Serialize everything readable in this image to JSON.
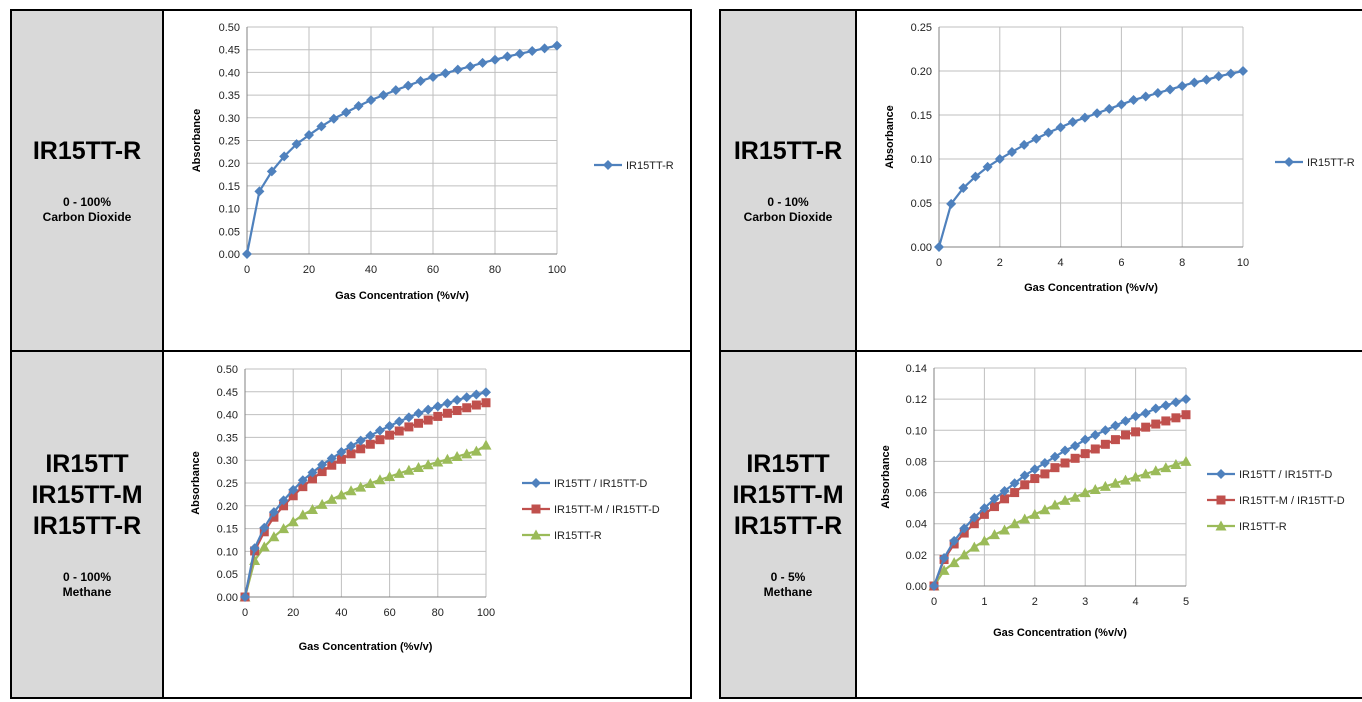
{
  "panels": [
    {
      "sensor_lines": [
        "IR15TT-R"
      ],
      "range": "0 - 100%",
      "gas": "Carbon Dioxide",
      "chart_data": {
        "type": "line",
        "xlabel": "Gas Concentration (%v/v)",
        "ylabel": "Absorbance",
        "xlim": [
          0,
          100
        ],
        "ylim": [
          0,
          0.5
        ],
        "xticks": [
          "0",
          "20",
          "40",
          "60",
          "80",
          "100"
        ],
        "yticks": [
          "0.00",
          "0.05",
          "0.10",
          "0.15",
          "0.20",
          "0.25",
          "0.30",
          "0.35",
          "0.40",
          "0.45",
          "0.50"
        ],
        "grid": true,
        "legend_position": "right",
        "series": [
          {
            "name": "IR15TT-R",
            "color": "#4f81bd",
            "marker": "diamond",
            "x": [
              0,
              4,
              8,
              12,
              16,
              20,
              24,
              28,
              32,
              36,
              40,
              44,
              48,
              52,
              56,
              60,
              64,
              68,
              72,
              76,
              80,
              84,
              88,
              92,
              96,
              100
            ],
            "y": [
              0.0,
              0.138,
              0.182,
              0.215,
              0.242,
              0.262,
              0.281,
              0.298,
              0.312,
              0.326,
              0.339,
              0.35,
              0.361,
              0.371,
              0.381,
              0.39,
              0.398,
              0.406,
              0.413,
              0.421,
              0.428,
              0.435,
              0.441,
              0.447,
              0.453,
              0.459
            ]
          }
        ]
      }
    },
    {
      "sensor_lines": [
        "IR15TT-R"
      ],
      "range": "0 - 10%",
      "gas": "Carbon Dioxide",
      "chart_data": {
        "type": "line",
        "xlabel": "Gas Concentration (%v/v)",
        "ylabel": "Absorbance",
        "xlim": [
          0,
          10
        ],
        "ylim": [
          0,
          0.25
        ],
        "xticks": [
          "0",
          "2",
          "4",
          "6",
          "8",
          "10"
        ],
        "yticks": [
          "0.00",
          "0.05",
          "0.10",
          "0.15",
          "0.20",
          "0.25"
        ],
        "grid": true,
        "legend_position": "right",
        "series": [
          {
            "name": "IR15TT-R",
            "color": "#4f81bd",
            "marker": "diamond",
            "x": [
              0,
              0.4,
              0.8,
              1.2,
              1.6,
              2.0,
              2.4,
              2.8,
              3.2,
              3.6,
              4.0,
              4.4,
              4.8,
              5.2,
              5.6,
              6.0,
              6.4,
              6.8,
              7.2,
              7.6,
              8.0,
              8.4,
              8.8,
              9.2,
              9.6,
              10.0
            ],
            "y": [
              0.0,
              0.049,
              0.067,
              0.08,
              0.091,
              0.1,
              0.108,
              0.116,
              0.123,
              0.13,
              0.136,
              0.142,
              0.147,
              0.152,
              0.157,
              0.162,
              0.167,
              0.171,
              0.175,
              0.179,
              0.183,
              0.187,
              0.19,
              0.194,
              0.197,
              0.2
            ]
          }
        ]
      }
    },
    {
      "sensor_lines": [
        "IR15TT",
        "IR15TT-M",
        "IR15TT-R"
      ],
      "range": "0 - 100%",
      "gas": "Methane",
      "chart_data": {
        "type": "line",
        "xlabel": "Gas Concentration (%v/v)",
        "ylabel": "Absorbance",
        "xlim": [
          0,
          100
        ],
        "ylim": [
          0,
          0.5
        ],
        "xticks": [
          "0",
          "20",
          "40",
          "60",
          "80",
          "100"
        ],
        "yticks": [
          "0.00",
          "0.05",
          "0.10",
          "0.15",
          "0.20",
          "0.25",
          "0.30",
          "0.35",
          "0.40",
          "0.45",
          "0.50"
        ],
        "grid": true,
        "legend_position": "right",
        "series": [
          {
            "name": "IR15TT / IR15TT-D",
            "color": "#4f81bd",
            "marker": "diamond",
            "x": [
              0,
              4,
              8,
              12,
              16,
              20,
              24,
              28,
              32,
              36,
              40,
              44,
              48,
              52,
              56,
              60,
              64,
              68,
              72,
              76,
              80,
              84,
              88,
              92,
              96,
              100
            ],
            "y": [
              0.0,
              0.107,
              0.152,
              0.186,
              0.212,
              0.235,
              0.256,
              0.273,
              0.29,
              0.304,
              0.318,
              0.331,
              0.343,
              0.354,
              0.365,
              0.375,
              0.385,
              0.394,
              0.403,
              0.411,
              0.418,
              0.425,
              0.432,
              0.438,
              0.444,
              0.449
            ]
          },
          {
            "name": "IR15TT-M / IR15TT-D",
            "color": "#c0504d",
            "marker": "square",
            "x": [
              0,
              4,
              8,
              12,
              16,
              20,
              24,
              28,
              32,
              36,
              40,
              44,
              48,
              52,
              56,
              60,
              64,
              68,
              72,
              76,
              80,
              84,
              88,
              92,
              96,
              100
            ],
            "y": [
              0.0,
              0.101,
              0.143,
              0.175,
              0.2,
              0.222,
              0.242,
              0.259,
              0.275,
              0.289,
              0.302,
              0.314,
              0.325,
              0.335,
              0.345,
              0.355,
              0.364,
              0.373,
              0.381,
              0.388,
              0.396,
              0.403,
              0.409,
              0.415,
              0.421,
              0.426
            ]
          },
          {
            "name": "IR15TT-R",
            "color": "#9bbb59",
            "marker": "triangle",
            "x": [
              0,
              4,
              8,
              12,
              16,
              20,
              24,
              28,
              32,
              36,
              40,
              44,
              48,
              52,
              56,
              60,
              64,
              68,
              72,
              76,
              80,
              84,
              88,
              92,
              96,
              100
            ],
            "y": [
              0.0,
              0.08,
              0.11,
              0.132,
              0.15,
              0.165,
              0.18,
              0.192,
              0.203,
              0.214,
              0.224,
              0.233,
              0.241,
              0.249,
              0.257,
              0.264,
              0.271,
              0.278,
              0.284,
              0.29,
              0.296,
              0.302,
              0.308,
              0.314,
              0.32,
              0.333
            ]
          }
        ]
      }
    },
    {
      "sensor_lines": [
        "IR15TT",
        "IR15TT-M",
        "IR15TT-R"
      ],
      "range": "0 - 5%",
      "gas": "Methane",
      "chart_data": {
        "type": "line",
        "xlabel": "Gas Concentration (%v/v)",
        "ylabel": "Absorbance",
        "xlim": [
          0,
          5
        ],
        "ylim": [
          0,
          0.14
        ],
        "xticks": [
          "0",
          "1",
          "2",
          "3",
          "4",
          "5"
        ],
        "yticks": [
          "0.00",
          "0.02",
          "0.04",
          "0.06",
          "0.08",
          "0.10",
          "0.12",
          "0.14"
        ],
        "grid": true,
        "legend_position": "right",
        "series": [
          {
            "name": "IR15TT / IR15TT-D",
            "color": "#4f81bd",
            "marker": "diamond",
            "x": [
              0,
              0.2,
              0.4,
              0.6,
              0.8,
              1.0,
              1.2,
              1.4,
              1.6,
              1.8,
              2.0,
              2.2,
              2.4,
              2.6,
              2.8,
              3.0,
              3.2,
              3.4,
              3.6,
              3.8,
              4.0,
              4.2,
              4.4,
              4.6,
              4.8,
              5.0
            ],
            "y": [
              0.0,
              0.018,
              0.029,
              0.037,
              0.044,
              0.05,
              0.056,
              0.061,
              0.066,
              0.071,
              0.075,
              0.079,
              0.083,
              0.087,
              0.09,
              0.094,
              0.097,
              0.1,
              0.103,
              0.106,
              0.109,
              0.111,
              0.114,
              0.116,
              0.118,
              0.12
            ]
          },
          {
            "name": "IR15TT-M / IR15TT-D",
            "color": "#c0504d",
            "marker": "square",
            "x": [
              0,
              0.2,
              0.4,
              0.6,
              0.8,
              1.0,
              1.2,
              1.4,
              1.6,
              1.8,
              2.0,
              2.2,
              2.4,
              2.6,
              2.8,
              3.0,
              3.2,
              3.4,
              3.6,
              3.8,
              4.0,
              4.2,
              4.4,
              4.6,
              4.8,
              5.0
            ],
            "y": [
              0.0,
              0.017,
              0.027,
              0.034,
              0.04,
              0.046,
              0.051,
              0.056,
              0.06,
              0.065,
              0.069,
              0.072,
              0.076,
              0.079,
              0.082,
              0.085,
              0.088,
              0.091,
              0.094,
              0.097,
              0.099,
              0.102,
              0.104,
              0.106,
              0.108,
              0.11
            ]
          },
          {
            "name": "IR15TT-R",
            "color": "#9bbb59",
            "marker": "triangle",
            "x": [
              0,
              0.2,
              0.4,
              0.6,
              0.8,
              1.0,
              1.2,
              1.4,
              1.6,
              1.8,
              2.0,
              2.2,
              2.4,
              2.6,
              2.8,
              3.0,
              3.2,
              3.4,
              3.6,
              3.8,
              4.0,
              4.2,
              4.4,
              4.6,
              4.8,
              5.0
            ],
            "y": [
              0.0,
              0.01,
              0.015,
              0.02,
              0.025,
              0.029,
              0.033,
              0.036,
              0.04,
              0.043,
              0.046,
              0.049,
              0.052,
              0.055,
              0.057,
              0.06,
              0.062,
              0.064,
              0.066,
              0.068,
              0.07,
              0.072,
              0.074,
              0.076,
              0.078,
              0.08
            ]
          }
        ]
      }
    }
  ]
}
